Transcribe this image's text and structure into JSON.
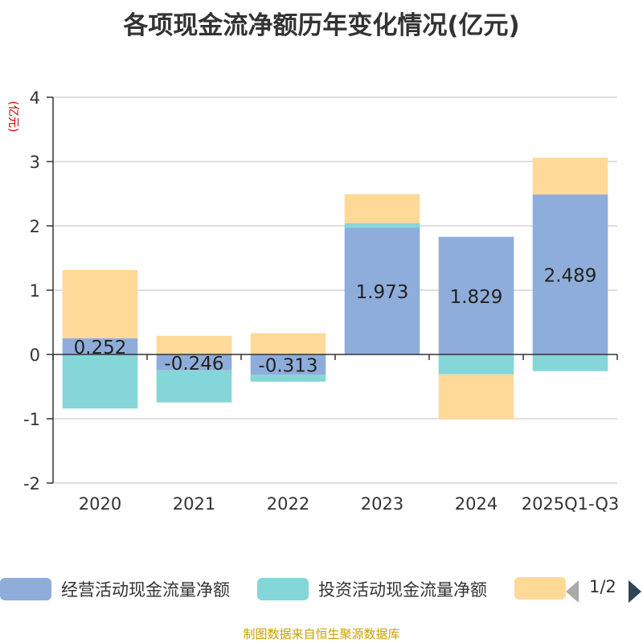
{
  "chart_data": {
    "type": "bar",
    "stacked": true,
    "title": "各项现金流净额历年变化情况(亿元)",
    "ylabel": "(亿元)",
    "categories": [
      "2020",
      "2021",
      "2022",
      "2023",
      "2024",
      "2025Q1-Q3"
    ],
    "ylim": [
      -2,
      4
    ],
    "yticks": [
      4,
      3,
      2,
      1,
      0,
      -1,
      -2
    ],
    "grid": true,
    "series": [
      {
        "name": "经营活动现金流量净额",
        "color": "#8eadda",
        "values": [
          0.252,
          -0.246,
          -0.313,
          1.973,
          1.829,
          2.489
        ],
        "labels": [
          "0.252",
          "-0.246",
          "-0.313",
          "1.973",
          "1.829",
          "2.489"
        ]
      },
      {
        "name": "投资活动现金流量净额",
        "color": "#85d6d8",
        "values": [
          -0.84,
          -0.5,
          -0.11,
          0.07,
          -0.31,
          -0.26
        ]
      },
      {
        "name": "",
        "color": "#fed998",
        "values": [
          1.06,
          0.29,
          0.33,
          0.45,
          -0.7,
          0.57
        ]
      }
    ],
    "legend_page": "1/2",
    "source": "制图数据来自恒生聚源数据库"
  }
}
